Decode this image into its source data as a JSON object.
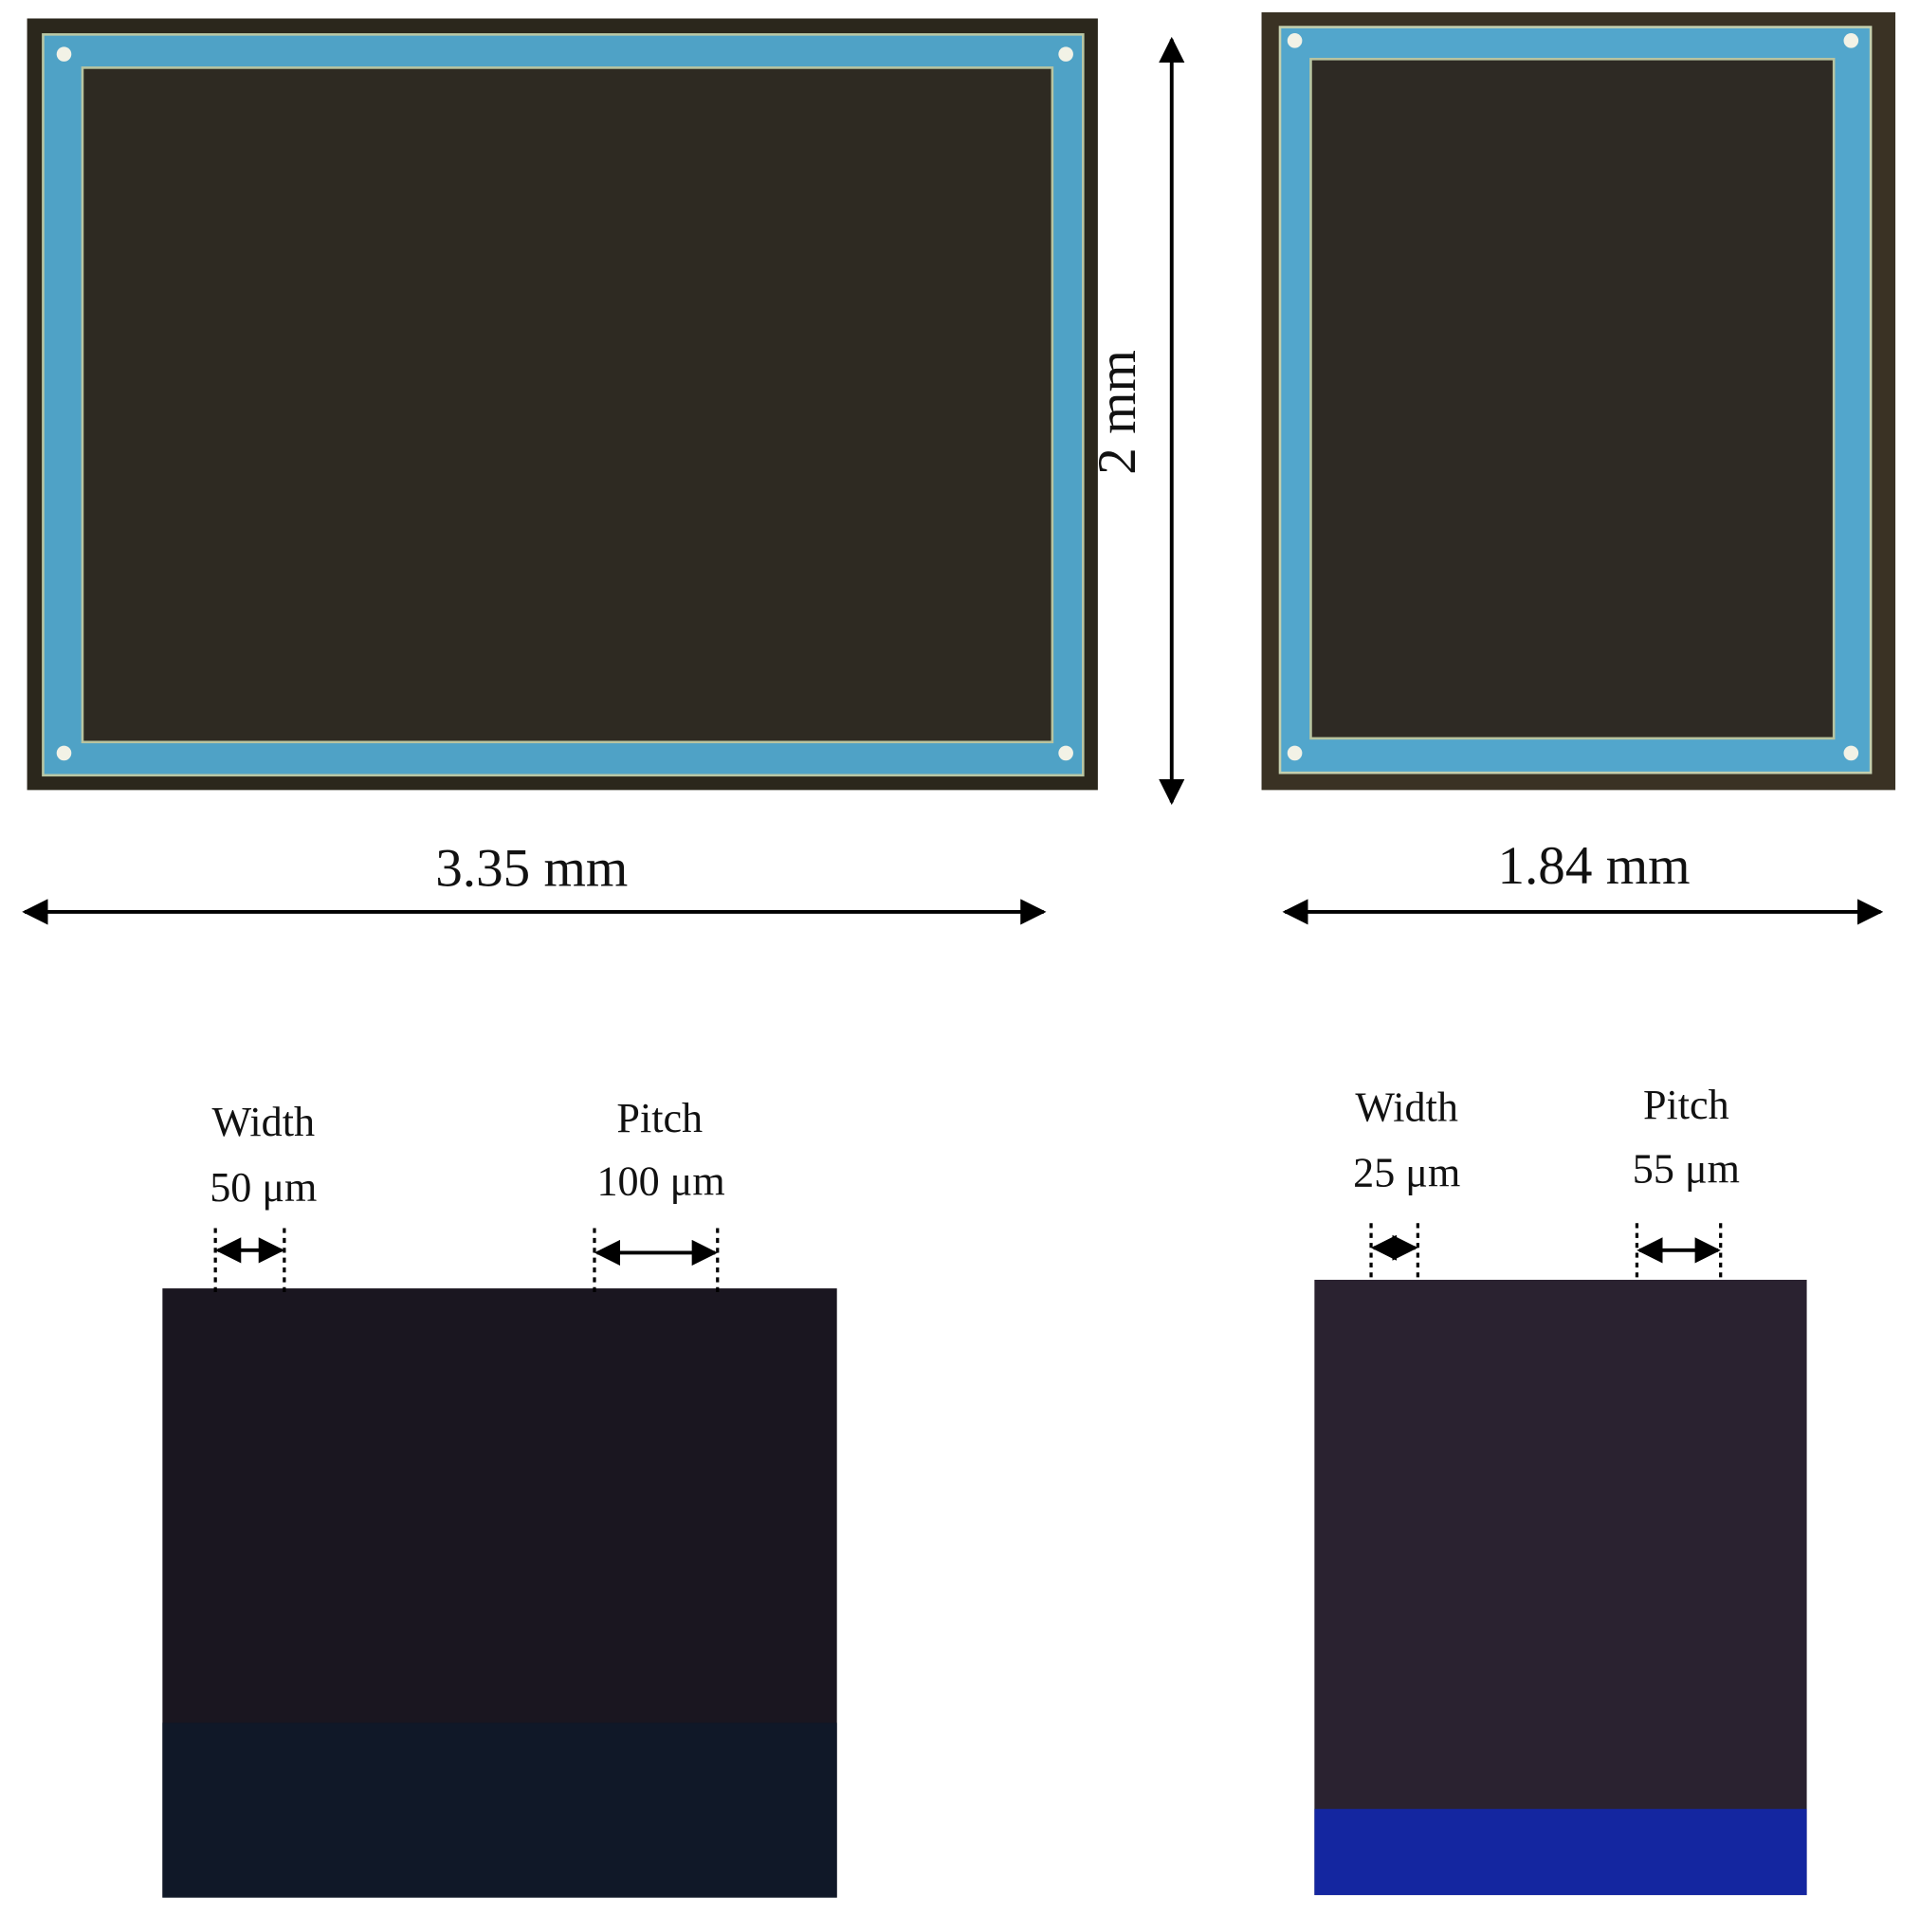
{
  "top_left": {
    "width_label": "3.35 mm",
    "height_label": "2 mm"
  },
  "top_right": {
    "width_label": "1.84 mm"
  },
  "bottom_left": {
    "width": {
      "title": "Width",
      "value": "50 μm"
    },
    "pitch": {
      "title": "Pitch",
      "value": "100 μm"
    }
  },
  "bottom_right": {
    "width": {
      "title": "Width",
      "value": "25 μm"
    },
    "pitch": {
      "title": "Pitch",
      "value": "55 μm"
    }
  }
}
